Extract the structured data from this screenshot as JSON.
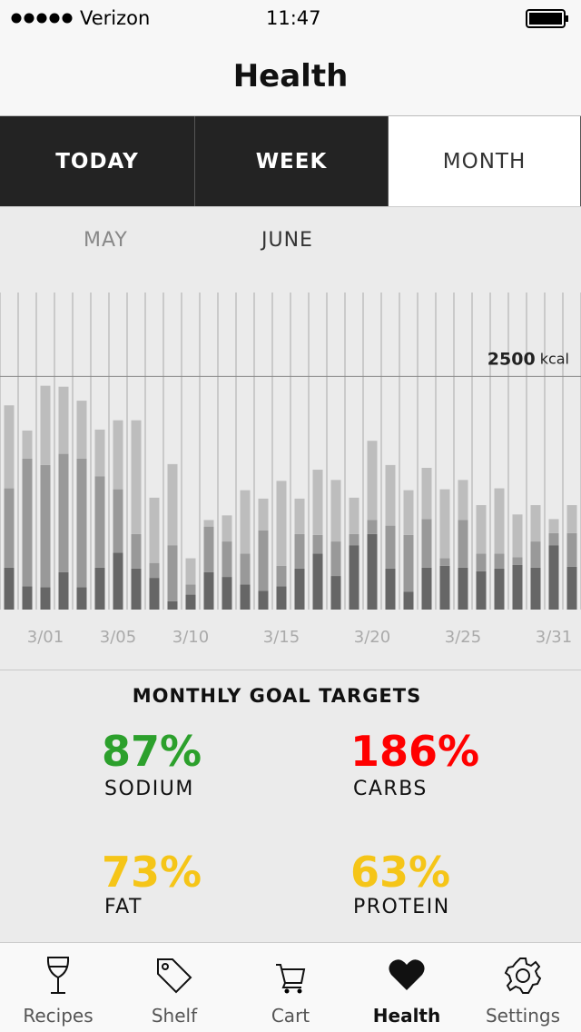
{
  "status_bar": {
    "carrier": "Verizon",
    "time": "11:47"
  },
  "header": {
    "title": "Health"
  },
  "tabs": {
    "items": [
      "TODAY",
      "WEEK",
      "MONTH"
    ],
    "selected": 2
  },
  "months": {
    "items": [
      "MAY",
      "JUNE"
    ],
    "selected": 1
  },
  "chart_data": {
    "type": "bar",
    "stacked": true,
    "categories": [
      null,
      null,
      "3/01",
      null,
      null,
      null,
      "3/05",
      null,
      null,
      null,
      "3/10",
      null,
      null,
      null,
      null,
      "3/15",
      null,
      null,
      null,
      null,
      "3/20",
      null,
      null,
      null,
      null,
      "3/25",
      null,
      null,
      null,
      null,
      "3/31",
      null
    ],
    "series": [
      {
        "color": "#666666",
        "values": [
          450,
          250,
          240,
          400,
          240,
          450,
          610,
          440,
          340,
          90,
          160,
          400,
          350,
          270,
          200,
          250,
          440,
          600,
          360,
          690,
          810,
          440,
          190,
          450,
          470,
          450,
          410,
          440,
          480,
          450,
          690,
          460
        ]
      },
      {
        "color": "#999999",
        "values": [
          850,
          1370,
          1310,
          1270,
          1380,
          980,
          680,
          370,
          160,
          600,
          110,
          490,
          380,
          330,
          650,
          220,
          370,
          200,
          370,
          120,
          150,
          460,
          610,
          520,
          80,
          510,
          190,
          160,
          80,
          280,
          130,
          360
        ]
      },
      {
        "color": "#bdbdbd",
        "values": [
          890,
          300,
          850,
          720,
          620,
          500,
          740,
          1220,
          700,
          870,
          280,
          70,
          280,
          680,
          340,
          910,
          380,
          700,
          660,
          390,
          850,
          650,
          480,
          550,
          740,
          430,
          520,
          700,
          460,
          390,
          150,
          300
        ]
      }
    ],
    "ylim": [
      0,
      3400
    ],
    "yticks": [
      2500
    ],
    "y_unit": "kcal",
    "grid": true
  },
  "goals": {
    "title": "MONTHLY GOAL TARGETS",
    "items": [
      {
        "value": "87%",
        "name": "SODIUM",
        "color": "#2ca02c"
      },
      {
        "value": "186%",
        "name": "CARBS",
        "color": "#ff0000"
      },
      {
        "value": "73%",
        "name": "FAT",
        "color": "#f5c518"
      },
      {
        "value": "63%",
        "name": "PROTEIN",
        "color": "#f5c518"
      }
    ]
  },
  "tab_bar": {
    "items": [
      "Recipes",
      "Shelf",
      "Cart",
      "Health",
      "Settings"
    ],
    "selected": 3
  }
}
